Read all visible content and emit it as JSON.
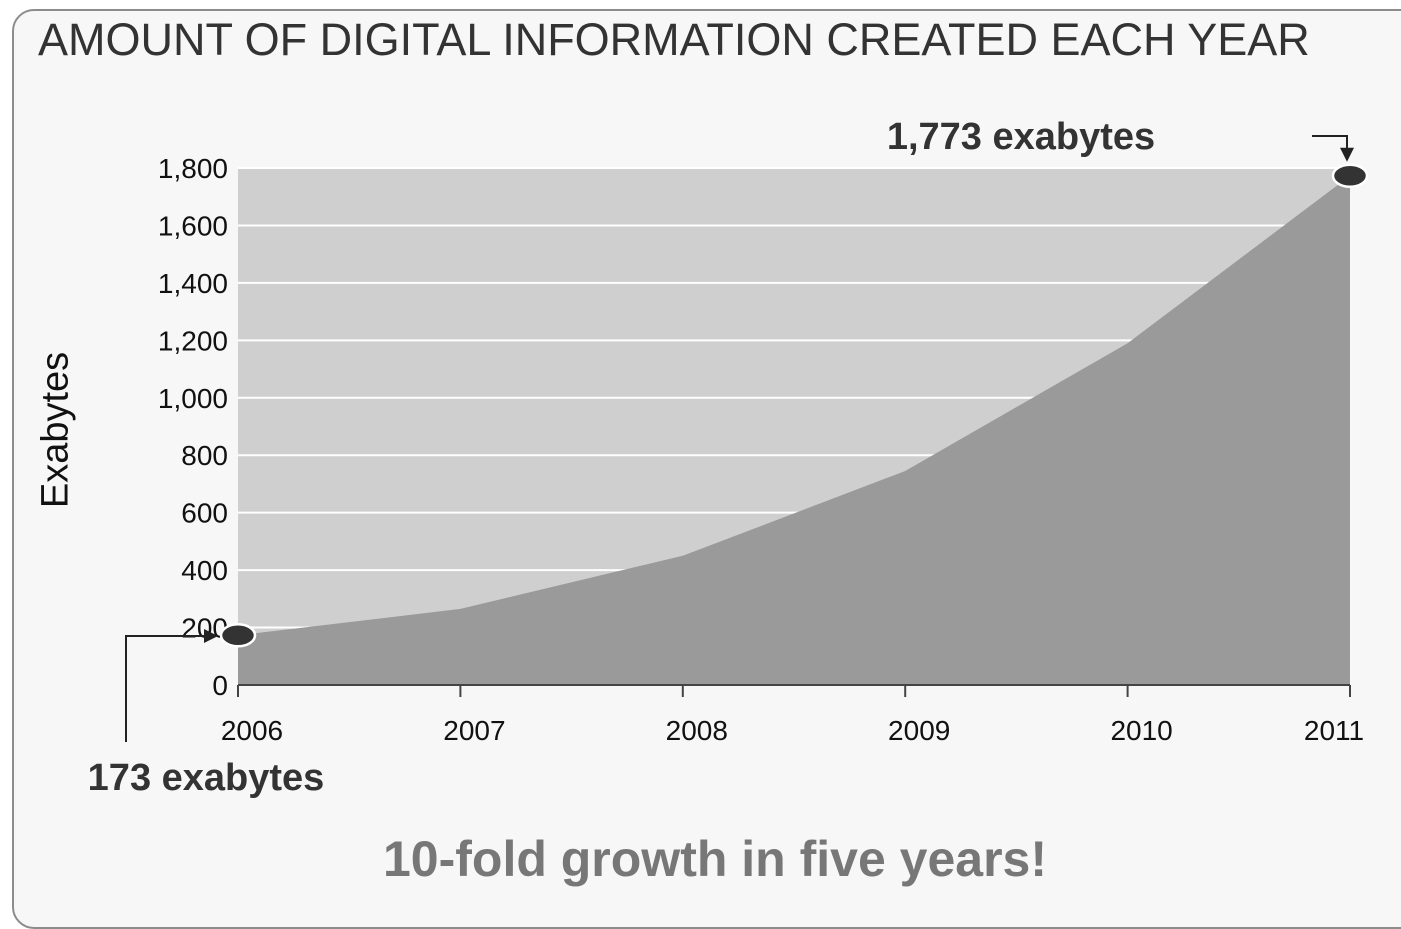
{
  "chart_data": {
    "type": "area",
    "title": "AMOUNT OF DIGITAL INFORMATION CREATED EACH YEAR",
    "xlabel": "",
    "ylabel": "Exabytes",
    "categories": [
      "2006",
      "2007",
      "2008",
      "2009",
      "2010",
      "2011"
    ],
    "series": [
      {
        "values": [
          173,
          265,
          450,
          745,
          1190,
          1773
        ]
      }
    ],
    "ylim": [
      0,
      1800
    ],
    "yticks": [
      0,
      200,
      400,
      600,
      800,
      1000,
      1200,
      1400,
      1600,
      1800
    ],
    "ytick_labels": [
      "0",
      "200",
      "400",
      "600",
      "800",
      "1,000",
      "1,200",
      "1,400",
      "1,600",
      "1,800"
    ],
    "grid": true,
    "annotations": [
      {
        "text": "173 exabytes",
        "category": "2006",
        "value": 173
      },
      {
        "text": "1,773 exabytes",
        "category": "2011",
        "value": 1773
      }
    ],
    "colors": {
      "plot_background": "#cfcfcf",
      "area_fill": "#9a9a9a",
      "gridline": "#ffffff",
      "marker": "#333333"
    }
  },
  "footer": {
    "tagline": "10-fold growth in five years!"
  }
}
